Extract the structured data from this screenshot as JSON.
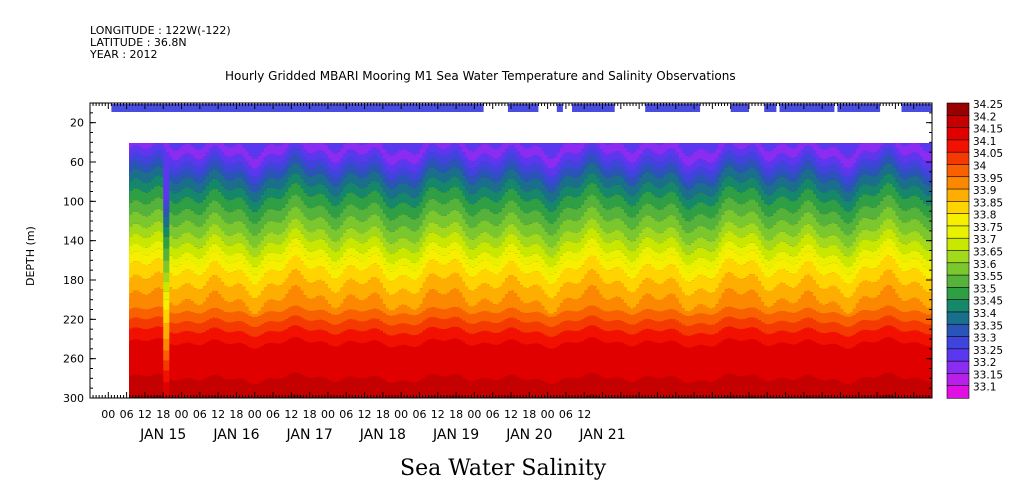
{
  "header": {
    "longitude": "LONGITUDE : 122W(-122)",
    "latitude": "LATITUDE : 36.8N",
    "year": "YEAR : 2012"
  },
  "chart_data": {
    "type": "heatmap",
    "title": "Hourly Gridded MBARI Mooring M1 Sea Water Temperature and Salinity Observations",
    "xlabel": "Sea Water Salinity",
    "ylabel": "DEPTH (m)",
    "ylim": [
      300,
      0
    ],
    "y_ticks": [
      "20",
      "60",
      "100",
      "140",
      "180",
      "220",
      "260",
      "300"
    ],
    "x_hour_ticks": [
      "00",
      "06",
      "12",
      "18",
      "00",
      "06",
      "12",
      "18",
      "00",
      "06",
      "12",
      "18",
      "00",
      "06",
      "12",
      "18",
      "00",
      "06",
      "12",
      "18",
      "00",
      "06",
      "12",
      "18",
      "00",
      "06",
      "12"
    ],
    "x_day_labels": [
      "JAN 15",
      "JAN 16",
      "JAN 17",
      "JAN 18",
      "JAN 19",
      "JAN 20",
      "JAN 21"
    ],
    "colorbar": {
      "labels": [
        "34.25",
        "34.2",
        "34.15",
        "34.1",
        "34.05",
        "34",
        "33.95",
        "33.9",
        "33.85",
        "33.8",
        "33.75",
        "33.7",
        "33.65",
        "33.6",
        "33.55",
        "33.5",
        "33.45",
        "33.4",
        "33.35",
        "33.3",
        "33.25",
        "33.2",
        "33.15",
        "33.1"
      ],
      "colors": [
        "#9b0000",
        "#c40000",
        "#e00000",
        "#f21000",
        "#f43a00",
        "#f86000",
        "#fb8800",
        "#fdae00",
        "#ffd400",
        "#f6ef00",
        "#e8f200",
        "#c8e800",
        "#a2d91c",
        "#7bc82e",
        "#55b33c",
        "#2e9f44",
        "#15876a",
        "#1a6f8c",
        "#2a55b8",
        "#3f45dc",
        "#5b38f0",
        "#8a2cf2",
        "#b81fe8",
        "#e010e4"
      ]
    },
    "surface_obs_gaps_hours": [
      [
        0,
        6
      ],
      [
        129,
        137
      ],
      [
        147,
        153
      ],
      [
        155,
        158
      ],
      [
        172,
        182
      ],
      [
        200,
        210
      ],
      [
        216,
        221
      ],
      [
        225,
        226
      ],
      [
        244,
        245
      ],
      [
        259,
        266
      ]
    ],
    "data_start_depth": 30,
    "x_hours_span": [
      0,
      276
    ]
  }
}
